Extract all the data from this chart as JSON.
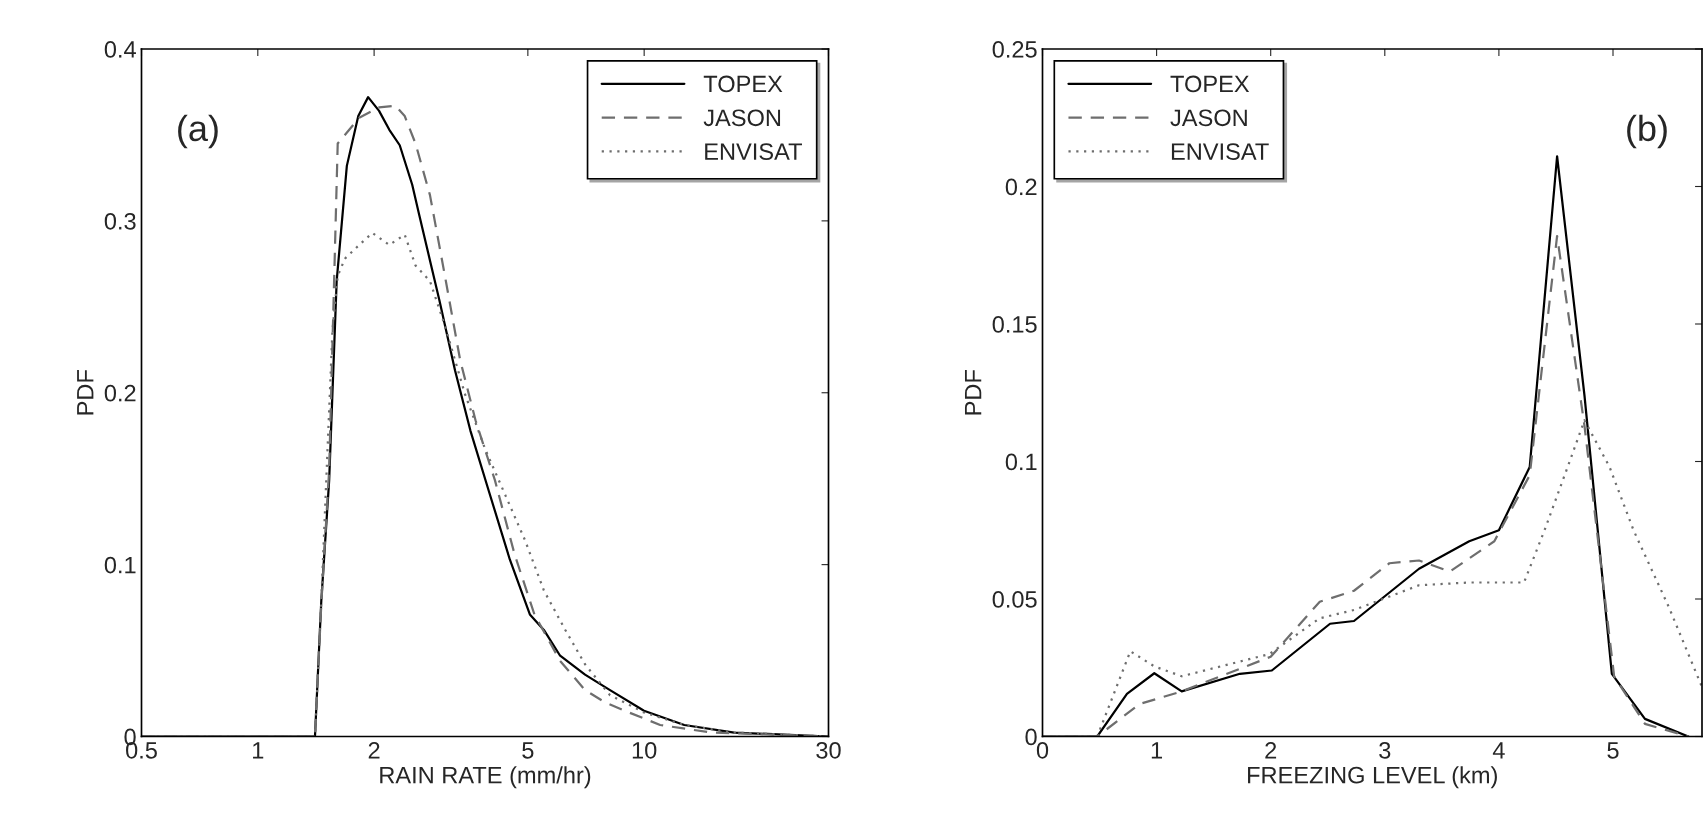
{
  "chart_data": [
    {
      "type": "line",
      "xlabel": "RAIN RATE (mm/hr)",
      "ylabel": "PDF",
      "log": "x",
      "xlim": [
        0.5,
        30
      ],
      "xticks": [
        0.5,
        1,
        2,
        5,
        10,
        30
      ],
      "ylim": [
        0,
        0.4
      ],
      "yticks": [
        0,
        0.1,
        0.2,
        0.3,
        0.4
      ],
      "grid": false,
      "legend": "top right",
      "annotations": [
        "(a)"
      ],
      "series": [
        {
          "name": "TOPEX",
          "color": "#000000",
          "line_style": "solid",
          "x": [
            0.5,
            1.406,
            1.46,
            1.53,
            1.6,
            1.7,
            1.82,
            1.93,
            2.06,
            2.19,
            2.33,
            2.51,
            2.62,
            2.79,
            2.95,
            3.24,
            3.55,
            3.96,
            4.49,
            5.06,
            5.5,
            6.06,
            7.03,
            8.16,
            9.99,
            12.7,
            17.1,
            30
          ],
          "values": [
            0,
            0,
            0.079,
            0.149,
            0.265,
            0.332,
            0.361,
            0.372,
            0.364,
            0.353,
            0.344,
            0.321,
            0.303,
            0.277,
            0.254,
            0.213,
            0.178,
            0.143,
            0.103,
            0.071,
            0.062,
            0.047,
            0.036,
            0.027,
            0.015,
            0.0067,
            0.0023,
            0
          ]
        },
        {
          "name": "JASON",
          "color": "#6e6e6e",
          "line_style": "dashed",
          "x": [
            0.5,
            1.406,
            1.46,
            1.53,
            1.61,
            1.83,
            2.06,
            2.27,
            2.4,
            2.56,
            2.79,
            3.05,
            3.34,
            3.66,
            4.11,
            4.62,
            5.2,
            6.06,
            7.03,
            7.9,
            8.9,
            11.0,
            14.9,
            30
          ],
          "values": [
            0,
            0,
            0.077,
            0.155,
            0.345,
            0.36,
            0.366,
            0.367,
            0.361,
            0.345,
            0.315,
            0.268,
            0.219,
            0.184,
            0.149,
            0.106,
            0.071,
            0.044,
            0.027,
            0.02,
            0.015,
            0.0067,
            0.0023,
            0
          ]
        },
        {
          "name": "ENVISAT",
          "color": "#6e6e6e",
          "line_style": "dotted",
          "x": [
            0.5,
            1.406,
            1.46,
            1.56,
            1.61,
            1.68,
            1.83,
            1.98,
            2.19,
            2.4,
            2.56,
            2.79,
            3.05,
            3.44,
            3.88,
            4.38,
            4.92,
            5.5,
            6.25,
            7.03,
            8.16,
            9.99,
            12.7,
            17.1,
            30
          ],
          "values": [
            0,
            0,
            0.079,
            0.236,
            0.268,
            0.278,
            0.286,
            0.293,
            0.286,
            0.292,
            0.274,
            0.265,
            0.239,
            0.199,
            0.167,
            0.14,
            0.114,
            0.085,
            0.062,
            0.042,
            0.024,
            0.014,
            0.0067,
            0.0023,
            0
          ]
        }
      ]
    },
    {
      "type": "line",
      "xlabel": "FREEZING LEVEL (km)",
      "ylabel": "PDF",
      "xlim": [
        0,
        5.78
      ],
      "xticks": [
        0,
        1,
        2,
        3,
        4,
        5
      ],
      "ylim": [
        0,
        0.25
      ],
      "yticks": [
        0,
        0.05,
        0.1,
        0.15,
        0.2,
        0.25
      ],
      "grid": false,
      "legend": "top left",
      "annotations": [
        "(b)"
      ],
      "series": [
        {
          "name": "TOPEX",
          "color": "#000000",
          "line_style": "solid",
          "x": [
            0,
            0.48,
            0.74,
            0.98,
            1.22,
            1.73,
            2.01,
            2.52,
            2.73,
            3.3,
            3.74,
            4.0,
            4.27,
            4.51,
            4.75,
            4.99,
            5.28,
            5.66
          ],
          "values": [
            0,
            0,
            0.0155,
            0.023,
            0.0164,
            0.0228,
            0.024,
            0.041,
            0.042,
            0.061,
            0.071,
            0.075,
            0.098,
            0.211,
            0.124,
            0.0228,
            0.0064,
            0
          ]
        },
        {
          "name": "JASON",
          "color": "#6e6e6e",
          "line_style": "dashed",
          "x": [
            0,
            0.48,
            0.85,
            1.22,
            2.0,
            2.43,
            2.73,
            3.04,
            3.3,
            3.57,
            3.96,
            4.27,
            4.51,
            4.75,
            5.01,
            5.28,
            5.66
          ],
          "values": [
            0,
            0,
            0.0118,
            0.0164,
            0.029,
            0.049,
            0.053,
            0.063,
            0.064,
            0.06,
            0.071,
            0.095,
            0.182,
            0.113,
            0.0219,
            0.0046,
            0
          ]
        },
        {
          "name": "ENVISAT",
          "color": "#6e6e6e",
          "line_style": "dotted",
          "x": [
            0,
            0.48,
            0.77,
            0.98,
            1.22,
            1.99,
            2.43,
            2.73,
            3.3,
            3.74,
            4.0,
            4.22,
            4.4,
            4.62,
            4.75,
            4.97,
            5.18,
            5.49,
            5.78
          ],
          "values": [
            0,
            0,
            0.031,
            0.0255,
            0.0219,
            0.03,
            0.043,
            0.046,
            0.055,
            0.056,
            0.056,
            0.056,
            0.075,
            0.1,
            0.115,
            0.098,
            0.075,
            0.047,
            0.018
          ]
        }
      ]
    }
  ]
}
